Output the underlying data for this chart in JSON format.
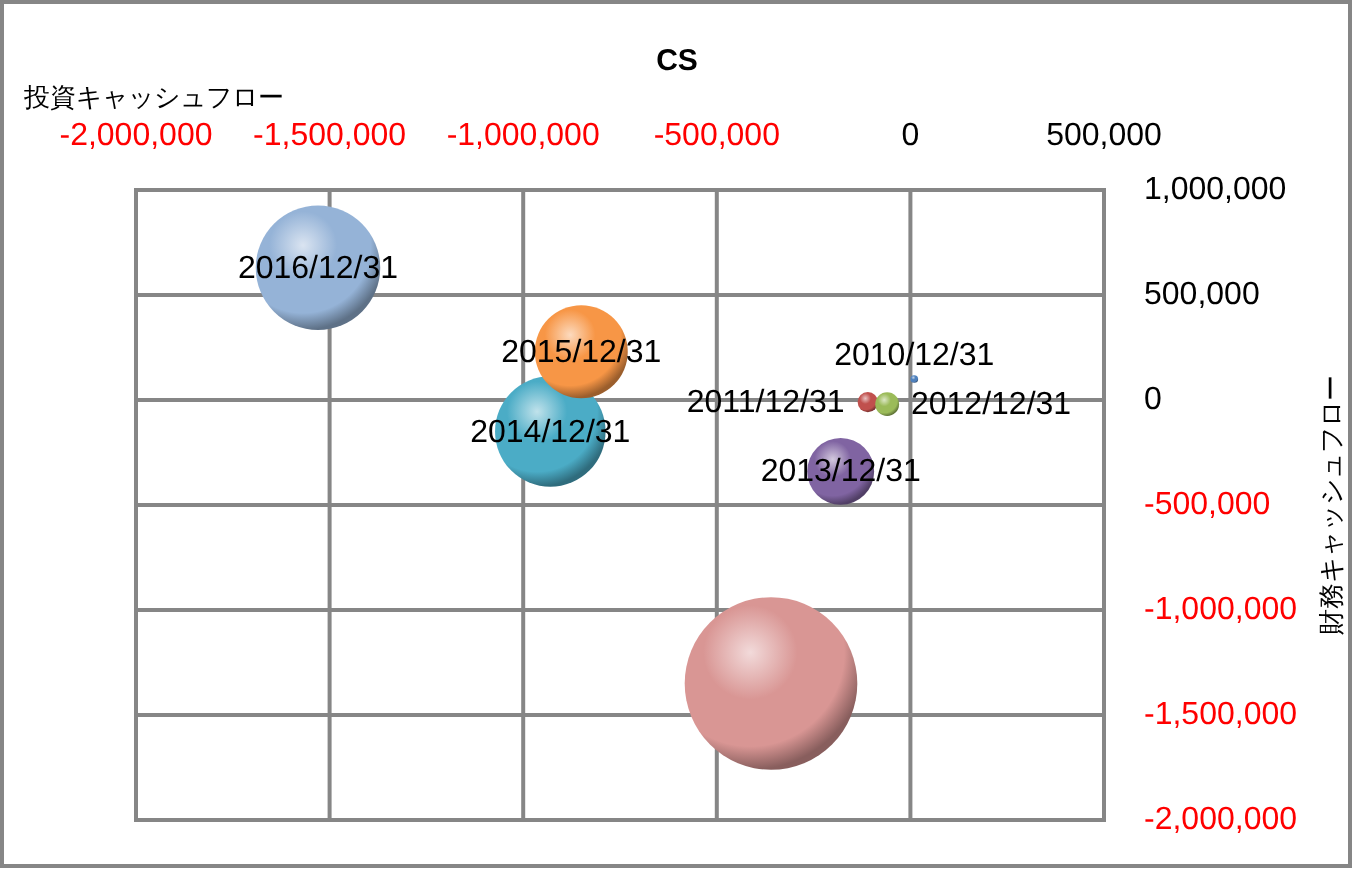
{
  "chart_data": {
    "type": "bubble",
    "title": "CS",
    "xlabel": "投資キャッシュフロー",
    "ylabel": "財務キャッシュフロー",
    "x": [
      10000,
      -110000,
      -60000,
      -180000,
      -930000,
      -850000,
      -1530000,
      -360000
    ],
    "values": [
      100000,
      -10000,
      -20000,
      -340000,
      -150000,
      230000,
      630000,
      -1350000
    ],
    "sizes": [
      0.002,
      0.014,
      0.019,
      0.15,
      0.41,
      0.29,
      0.52,
      1
    ],
    "colors": [
      "#4f81bd",
      "#c0504d",
      "#9bbb59",
      "#8064a2",
      "#4bacc6",
      "#f79646",
      "#95b3d7",
      "#d99694"
    ],
    "value_labels": [
      "2010/12/31",
      "2011/12/31",
      "2012/12/31",
      "2013/12/31",
      "2014/12/31",
      "2015/12/31",
      "2016/12/31",
      null
    ],
    "xlim": [
      -2000000,
      500000
    ],
    "ylim": [
      -2000000,
      1000000
    ],
    "xticks": [
      {
        "value": -2000000,
        "label": "-2,000,000"
      },
      {
        "value": -1500000,
        "label": "-1,500,000"
      },
      {
        "value": -1000000,
        "label": "-1,000,000"
      },
      {
        "value": -500000,
        "label": "-500,000"
      },
      0,
      {
        "value": 500000,
        "label": "500,000"
      }
    ],
    "yticks": [
      {
        "value": 1000000,
        "label": "1,000,000"
      },
      {
        "value": 500000,
        "label": "500,000"
      },
      0,
      {
        "value": -500000,
        "label": "-500,000"
      },
      {
        "value": -1000000,
        "label": "-1,000,000"
      },
      {
        "value": -1500000,
        "label": "-1,500,000"
      },
      {
        "value": -2000000,
        "label": "-2,000,000"
      }
    ],
    "grid": true
  }
}
